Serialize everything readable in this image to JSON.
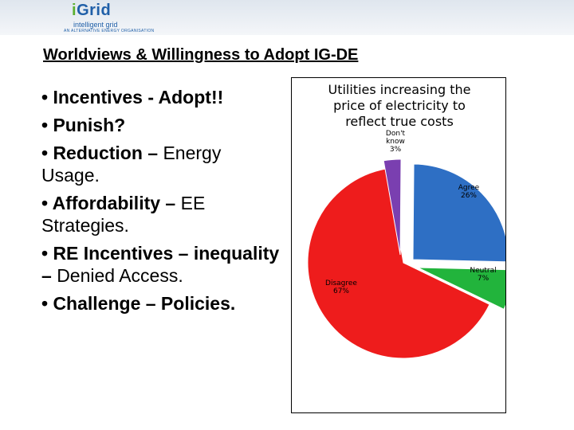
{
  "logo": {
    "brand_i": "i",
    "brand_rest": "Grid",
    "subtitle": "intelligent grid",
    "tagline": "AN ALTERNATIVE ENERGY ORGANISATION"
  },
  "slide": {
    "title": "Worldviews & Willingness to Adopt IG-DE"
  },
  "bullets": [
    {
      "strong": "• Incentives - Adopt!!",
      "rest": ""
    },
    {
      "strong": "• Punish?",
      "rest": ""
    },
    {
      "strong": "• Reduction – ",
      "rest": "Energy Usage."
    },
    {
      "strong": "• Affordability – ",
      "rest": "EE Strategies."
    },
    {
      "strong": "• RE Incentives – inequality – ",
      "rest": "Denied Access."
    },
    {
      "strong": "• Challenge – Policies.",
      "rest": ""
    }
  ],
  "chart_data": {
    "type": "pie",
    "title": "Utilities increasing the price of electricity to reflect true costs",
    "slices": [
      {
        "label": "Agree",
        "value": 26,
        "pct": "26%",
        "color": "#2e6fc4"
      },
      {
        "label": "Neutral",
        "value": 7,
        "pct": "7%",
        "color": "#22b43c"
      },
      {
        "label": "Disagree",
        "value": 67,
        "pct": "67%",
        "color": "#ee1c1c"
      },
      {
        "label": "Don't know",
        "value": 3,
        "pct": "3%",
        "color": "#7a3fb0"
      }
    ]
  }
}
